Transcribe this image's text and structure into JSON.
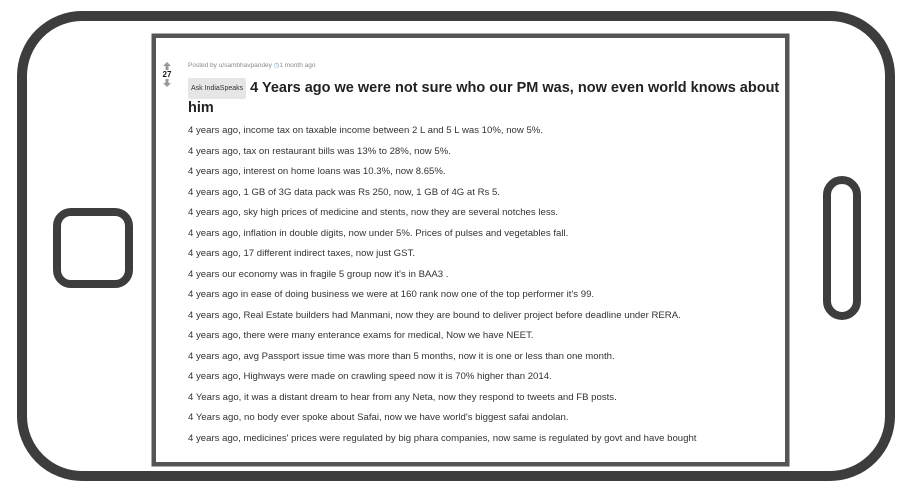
{
  "post": {
    "votes": "27",
    "posted_by": "Posted by u/sambhavpandey",
    "time": "1 month ago",
    "flair": "Ask IndiaSpeaks",
    "title": "4 Years ago we were not sure who our PM was, now even world knows about him",
    "lines": [
      "4 years ago, income tax on taxable income between 2 L and 5 L was 10%, now 5%.",
      "4 years ago, tax on restaurant bills was 13% to 28%, now 5%.",
      "4 years ago, interest on home loans was 10.3%, now 8.65%.",
      "4 years ago, 1 GB of 3G data pack was Rs 250, now, 1 GB of 4G at Rs 5.",
      "4 years ago, sky high prices of medicine and stents, now they are several notches less.",
      "4 years ago, inflation in double digits, now under 5%. Prices of pulses and vegetables fall.",
      "4 years ago, 17 different indirect taxes, now just GST.",
      "4 years our economy was in fragile 5 group now it's in BAA3 .",
      "4 years ago in ease of doing business we were at 160 rank now one of the top performer it's 99.",
      "4 years ago, Real Estate builders had Manmani, now they are bound to deliver project before deadline under RERA.",
      "4 years ago, there were many enterance exams for medical, Now we have NEET.",
      "4 years ago, avg Passport issue time was more than 5 months, now it is one or less than one month.",
      "4 years ago, Highways were made on crawling speed now it is 70% higher than 2014.",
      "4 Years ago, it was a distant dream to hear from any Neta, now they respond to tweets and FB posts.",
      "4 Years ago, no body ever spoke about Safai, now we have world's biggest safai andolan.",
      "4 years ago, medicines' prices were regulated by big phara companies, now same is regulated by govt and have bought"
    ]
  }
}
